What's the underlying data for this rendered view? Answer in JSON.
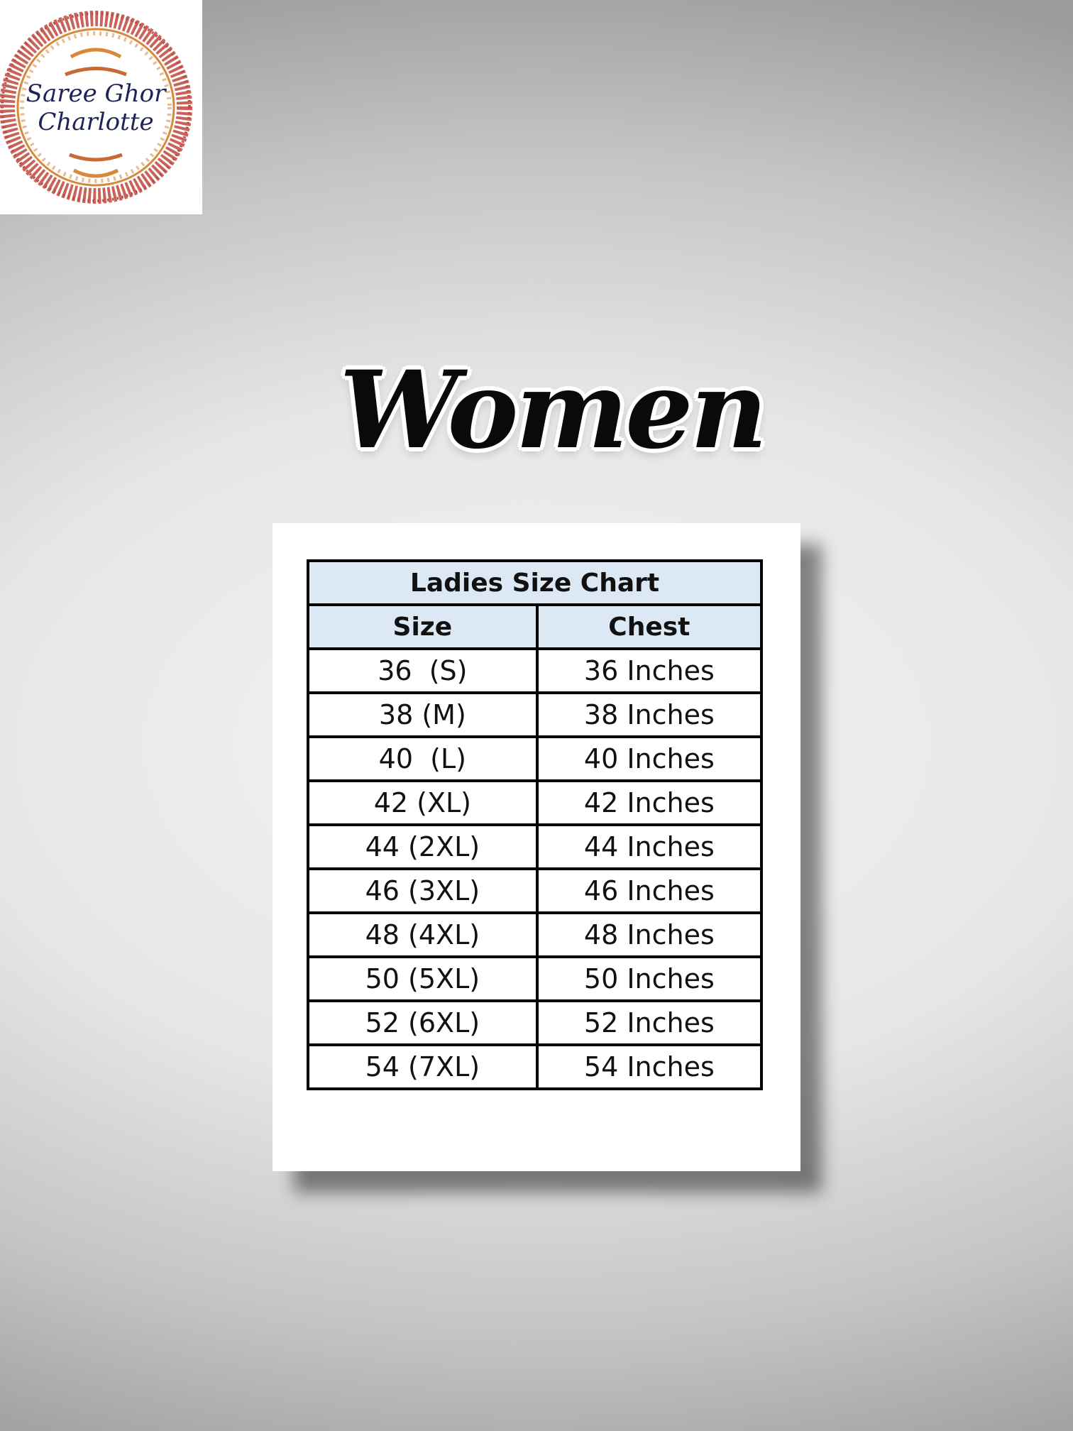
{
  "logo": {
    "line1": "Saree Ghor",
    "line2": "Charlotte",
    "colors": {
      "ornament": "#c0463c",
      "gold": "#d6893a",
      "text": "#1f2456"
    }
  },
  "heading": "Women",
  "table": {
    "title": "Ladies Size Chart",
    "columns": [
      "Size",
      "Chest"
    ],
    "header_color": "#dde8f5",
    "rows": [
      [
        "36  (S)",
        "36 Inches"
      ],
      [
        "38 (M)",
        "38 Inches"
      ],
      [
        "40  (L)",
        "40 Inches"
      ],
      [
        "42 (XL)",
        "42 Inches"
      ],
      [
        "44 (2XL)",
        "44 Inches"
      ],
      [
        "46 (3XL)",
        "46 Inches"
      ],
      [
        "48 (4XL)",
        "48 Inches"
      ],
      [
        "50 (5XL)",
        "50 Inches"
      ],
      [
        "52 (6XL)",
        "52 Inches"
      ],
      [
        "54 (7XL)",
        "54 Inches"
      ]
    ]
  }
}
